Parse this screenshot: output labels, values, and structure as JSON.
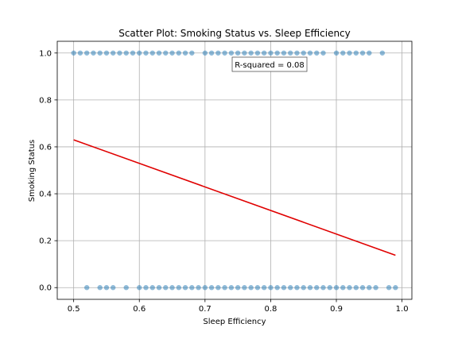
{
  "chart_data": {
    "type": "scatter",
    "title": "Scatter Plot: Smoking Status vs. Sleep Efficiency",
    "xlabel": "Sleep Efficiency",
    "ylabel": "Smoking Status",
    "xlim": [
      0.475,
      1.015
    ],
    "ylim": [
      -0.05,
      1.05
    ],
    "xticks": [
      0.5,
      0.6,
      0.7,
      0.8,
      0.9,
      1.0
    ],
    "xtick_labels": [
      "0.5",
      "0.6",
      "0.7",
      "0.8",
      "0.9",
      "1.0"
    ],
    "yticks": [
      0.0,
      0.2,
      0.4,
      0.6,
      0.8,
      1.0
    ],
    "ytick_labels": [
      "0.0",
      "0.2",
      "0.4",
      "0.6",
      "0.8",
      "1.0"
    ],
    "grid": true,
    "point_color": "#1f77b4",
    "point_alpha": 0.5,
    "regression_line": {
      "color": "#e00000",
      "points": [
        [
          0.5,
          0.63
        ],
        [
          0.99,
          0.138
        ]
      ]
    },
    "annotation": "R-squared = 0.08",
    "series": [
      {
        "y": 1.0,
        "x": [
          0.5,
          0.51,
          0.52,
          0.53,
          0.54,
          0.55,
          0.56,
          0.57,
          0.58,
          0.59,
          0.6,
          0.61,
          0.62,
          0.63,
          0.64,
          0.65,
          0.66,
          0.67,
          0.68,
          0.7,
          0.71,
          0.72,
          0.73,
          0.74,
          0.75,
          0.76,
          0.77,
          0.78,
          0.79,
          0.8,
          0.81,
          0.82,
          0.83,
          0.84,
          0.85,
          0.86,
          0.87,
          0.88,
          0.9,
          0.91,
          0.92,
          0.93,
          0.94,
          0.95,
          0.97
        ]
      },
      {
        "y": 0.0,
        "x": [
          0.52,
          0.54,
          0.55,
          0.56,
          0.58,
          0.6,
          0.61,
          0.62,
          0.63,
          0.64,
          0.65,
          0.66,
          0.67,
          0.68,
          0.69,
          0.7,
          0.71,
          0.72,
          0.73,
          0.74,
          0.75,
          0.76,
          0.77,
          0.78,
          0.79,
          0.8,
          0.81,
          0.82,
          0.83,
          0.84,
          0.85,
          0.86,
          0.87,
          0.88,
          0.89,
          0.9,
          0.91,
          0.92,
          0.93,
          0.94,
          0.95,
          0.96,
          0.98,
          0.99
        ]
      }
    ]
  }
}
